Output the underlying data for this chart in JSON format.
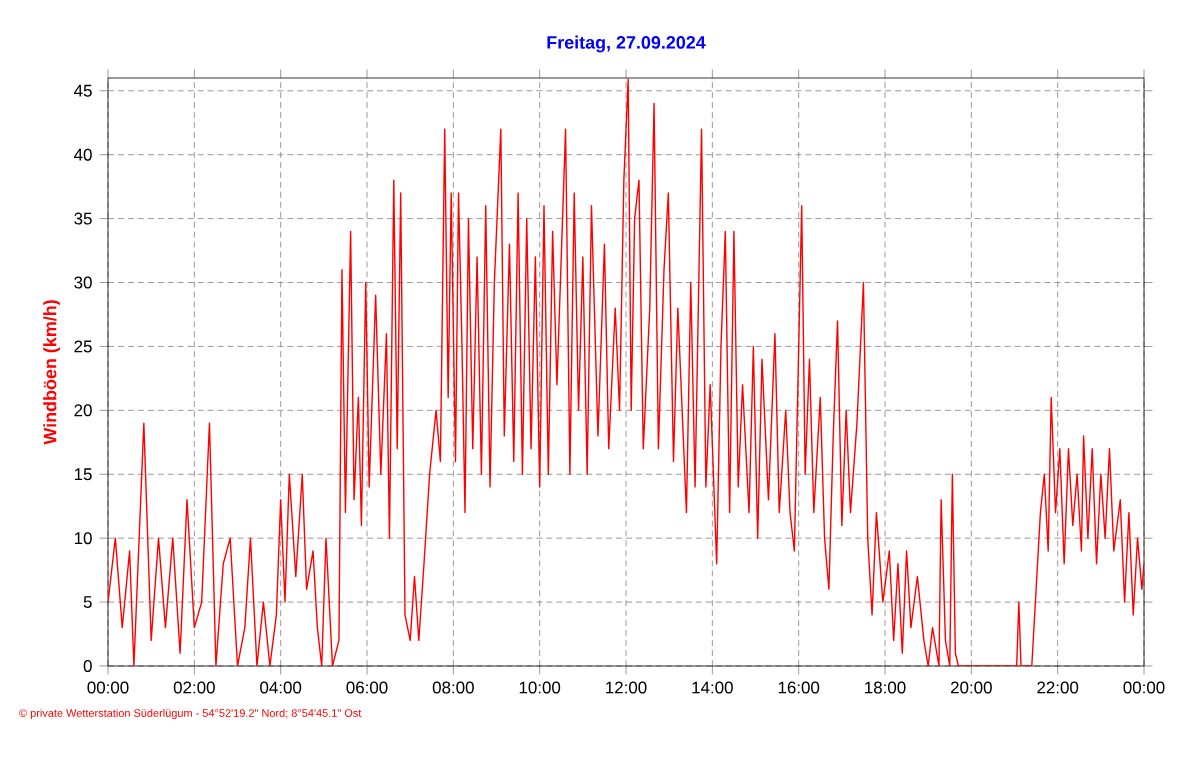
{
  "chart_data": {
    "type": "line",
    "title": "Freitag, 27.09.2024",
    "ylabel": "Windböen (km/h)",
    "annotations": [
      "© private Wetterstation Süderlügum - 54°52'19.2\" Nord; 8°54'45.1\" Ost"
    ],
    "xlim": [
      0,
      24
    ],
    "ylim": [
      0,
      46
    ],
    "xticks": [
      {
        "value": 0,
        "label": "00:00"
      },
      {
        "value": 2,
        "label": "02:00"
      },
      {
        "value": 4,
        "label": "04:00"
      },
      {
        "value": 6,
        "label": "06:00"
      },
      {
        "value": 8,
        "label": "08:00"
      },
      {
        "value": 10,
        "label": "10:00"
      },
      {
        "value": 12,
        "label": "12:00"
      },
      {
        "value": 14,
        "label": "14:00"
      },
      {
        "value": 16,
        "label": "16:00"
      },
      {
        "value": 18,
        "label": "18:00"
      },
      {
        "value": 20,
        "label": "20:00"
      },
      {
        "value": 22,
        "label": "22:00"
      },
      {
        "value": 24,
        "label": "00:00"
      }
    ],
    "yticks": [
      0,
      5,
      10,
      15,
      20,
      25,
      30,
      35,
      40,
      45
    ],
    "grid": true,
    "line_style": "solid",
    "series": [
      {
        "color": "#ff0000",
        "x": [
          0,
          0.17,
          0.33,
          0.5,
          0.6,
          0.83,
          1.0,
          1.17,
          1.33,
          1.5,
          1.67,
          1.83,
          2.0,
          2.17,
          2.35,
          2.5,
          2.67,
          2.83,
          3.0,
          3.17,
          3.3,
          3.45,
          3.6,
          3.75,
          3.9,
          4.0,
          4.1,
          4.2,
          4.35,
          4.5,
          4.6,
          4.75,
          4.85,
          4.95,
          5.05,
          5.2,
          5.35,
          5.42,
          5.5,
          5.62,
          5.7,
          5.8,
          5.87,
          5.97,
          6.05,
          6.2,
          6.32,
          6.45,
          6.52,
          6.62,
          6.7,
          6.78,
          6.88,
          7.0,
          7.1,
          7.2,
          7.32,
          7.45,
          7.6,
          7.7,
          7.8,
          7.88,
          7.95,
          8.05,
          8.12,
          8.2,
          8.27,
          8.35,
          8.45,
          8.55,
          8.65,
          8.75,
          8.85,
          8.95,
          9.1,
          9.18,
          9.3,
          9.4,
          9.5,
          9.6,
          9.7,
          9.8,
          9.9,
          10.0,
          10.1,
          10.2,
          10.3,
          10.4,
          10.6,
          10.7,
          10.8,
          10.9,
          11.0,
          11.1,
          11.2,
          11.35,
          11.5,
          11.6,
          11.75,
          11.85,
          11.95,
          12.05,
          12.12,
          12.2,
          12.3,
          12.4,
          12.55,
          12.65,
          12.75,
          12.88,
          12.98,
          13.1,
          13.2,
          13.3,
          13.4,
          13.5,
          13.6,
          13.75,
          13.85,
          13.95,
          14.1,
          14.2,
          14.3,
          14.4,
          14.5,
          14.6,
          14.7,
          14.85,
          14.95,
          15.05,
          15.15,
          15.3,
          15.45,
          15.55,
          15.7,
          15.8,
          15.9,
          16.07,
          16.15,
          16.25,
          16.35,
          16.5,
          16.6,
          16.7,
          16.8,
          16.9,
          17.0,
          17.1,
          17.2,
          17.35,
          17.5,
          17.6,
          17.7,
          17.8,
          17.95,
          18.1,
          18.2,
          18.3,
          18.4,
          18.5,
          18.6,
          18.75,
          18.9,
          19.0,
          19.1,
          19.25,
          19.3,
          19.4,
          19.5,
          19.56,
          19.63,
          19.7,
          21.05,
          21.1,
          21.15,
          21.4,
          21.5,
          21.6,
          21.69,
          21.78,
          21.85,
          21.95,
          22.05,
          22.15,
          22.25,
          22.35,
          22.45,
          22.55,
          22.6,
          22.7,
          22.8,
          22.9,
          23.0,
          23.1,
          23.2,
          23.3,
          23.45,
          23.55,
          23.65,
          23.75,
          23.85,
          23.95,
          24.0
        ],
        "values": [
          5,
          10,
          3,
          9,
          0,
          19,
          2,
          10,
          3,
          10,
          1,
          13,
          3,
          5,
          19,
          0,
          8,
          10,
          0,
          3,
          10,
          0,
          5,
          0,
          4,
          13,
          5,
          15,
          7,
          15,
          6,
          9,
          3,
          0,
          10,
          0,
          2,
          31,
          12,
          34,
          13,
          21,
          11,
          30,
          14,
          29,
          15,
          26,
          10,
          38,
          17,
          37,
          4,
          2,
          7,
          2,
          8,
          15,
          20,
          16,
          42,
          21,
          37,
          16,
          37,
          25,
          12,
          35,
          17,
          32,
          15,
          36,
          14,
          30,
          42,
          18,
          33,
          16,
          37,
          15,
          35,
          17,
          32,
          14,
          36,
          15,
          34,
          22,
          42,
          15,
          37,
          20,
          32,
          15,
          36,
          18,
          33,
          17,
          28,
          20,
          38,
          45.9,
          20,
          35,
          38,
          17,
          28,
          44,
          17,
          31,
          37,
          16,
          28,
          20,
          12,
          30,
          14,
          42,
          14,
          22,
          8,
          25,
          34,
          12,
          34,
          14,
          22,
          12,
          25,
          10,
          24,
          13,
          26,
          12,
          20,
          12,
          9,
          36,
          15,
          24,
          12,
          21,
          10,
          6,
          18,
          27,
          11,
          20,
          12,
          19,
          30,
          10,
          4,
          12,
          5,
          9,
          2,
          8,
          1,
          9,
          3,
          7,
          2,
          0,
          3,
          0,
          13,
          2,
          0,
          15,
          1,
          0,
          0,
          5,
          0,
          0,
          6,
          12,
          15,
          9,
          21,
          12,
          17,
          8,
          17,
          11,
          15,
          9,
          18,
          10,
          17,
          8,
          15,
          10,
          17,
          9,
          13,
          5,
          12,
          4,
          10,
          6,
          8
        ]
      }
    ]
  }
}
